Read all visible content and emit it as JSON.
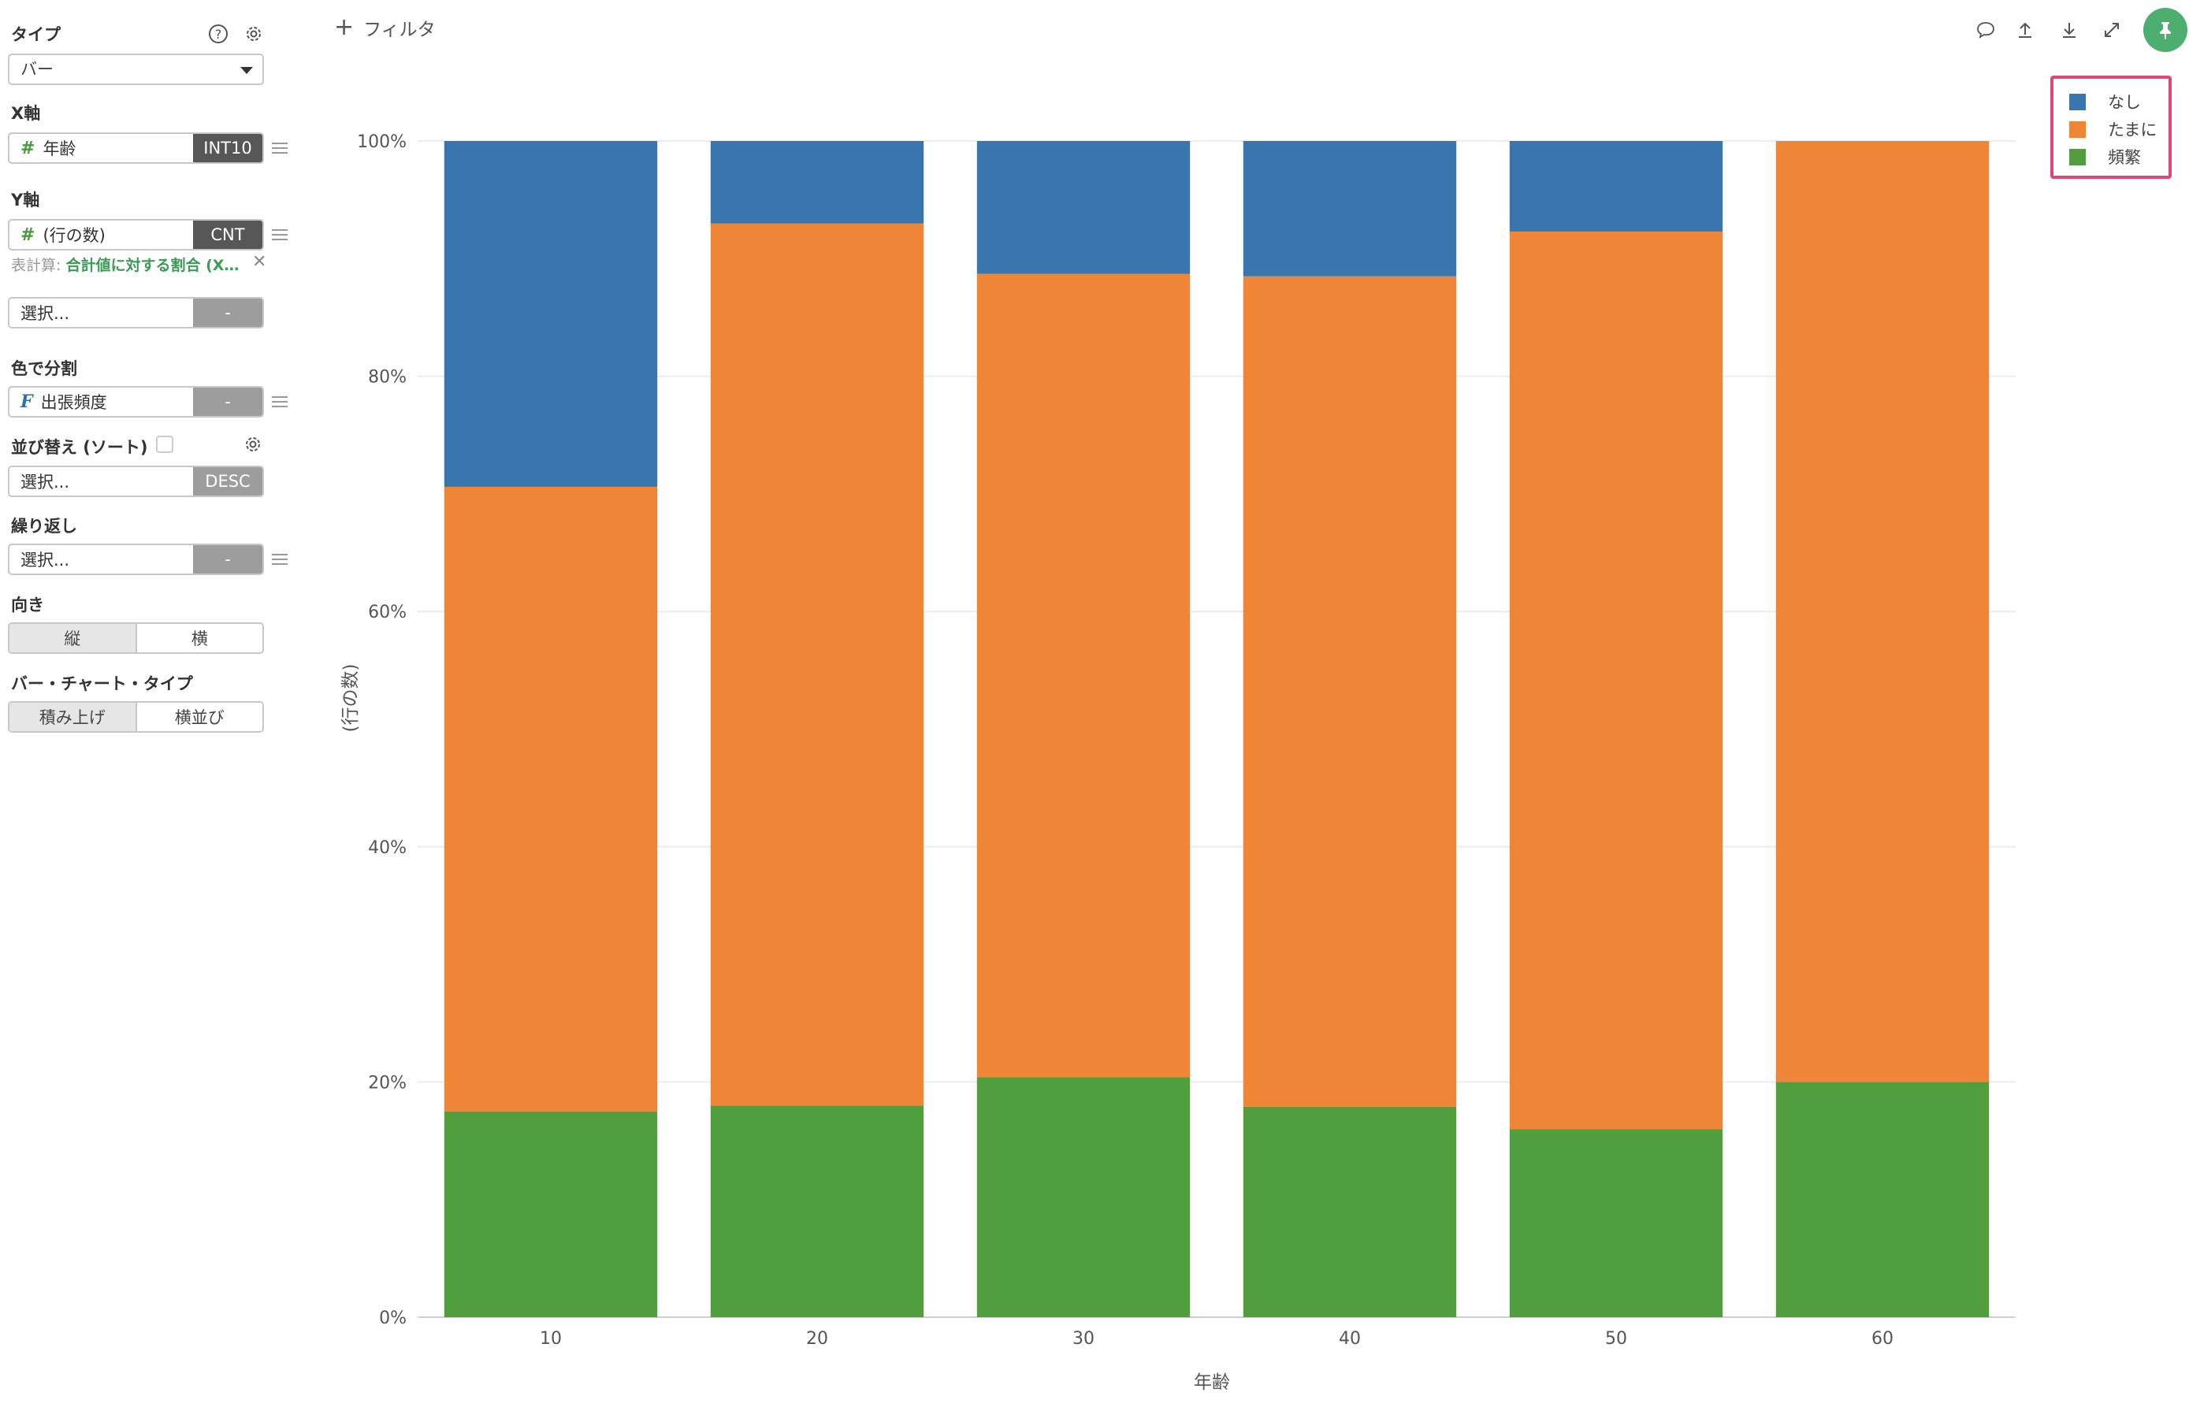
{
  "sidebar": {
    "type_label": "タイプ",
    "type_value": "バー",
    "x_axis_label": "X軸",
    "x_field": "年齢",
    "x_tag": "INT10",
    "y_axis_label": "Y軸",
    "y_field": "(行の数)",
    "y_tag": "CNT",
    "calc_prefix": "表計算:",
    "calc_value": "合計値に対する割合 (X…",
    "y2_placeholder": "選択...",
    "y2_tag": "-",
    "color_label": "色で分割",
    "color_field": "出張頻度",
    "color_tag": "-",
    "sort_label": "並び替え (ソート)",
    "sort_placeholder": "選択...",
    "sort_tag": "DESC",
    "repeat_label": "繰り返し",
    "repeat_placeholder": "選択...",
    "repeat_tag": "-",
    "orientation_label": "向き",
    "orientation_options": [
      "縦",
      "横"
    ],
    "bar_type_label": "バー・チャート・タイプ",
    "bar_type_options": [
      "積み上げ",
      "横並び"
    ]
  },
  "toolbar": {
    "filter_label": "フィルタ",
    "icons": [
      "comment-icon",
      "upload-icon",
      "download-icon",
      "expand-icon",
      "pin-icon"
    ]
  },
  "legend": {
    "items": [
      {
        "label": "なし",
        "color": "#3a76ae"
      },
      {
        "label": "たまに",
        "color": "#ef8536"
      },
      {
        "label": "頻繁",
        "color": "#519e3e"
      }
    ]
  },
  "chart_data": {
    "type": "bar",
    "stacked": true,
    "percent": true,
    "categories": [
      "10",
      "20",
      "30",
      "40",
      "50",
      "60"
    ],
    "series": [
      {
        "name": "頻繁",
        "color": "#519e3e",
        "values": [
          17.5,
          18.0,
          20.4,
          17.9,
          16.0,
          20.0
        ]
      },
      {
        "name": "たまに",
        "color": "#ef8536",
        "values": [
          53.1,
          75.0,
          68.3,
          70.6,
          76.3,
          80.0
        ]
      },
      {
        "name": "なし",
        "color": "#3a76ae",
        "values": [
          29.4,
          7.0,
          11.3,
          11.5,
          7.7,
          0.0
        ]
      }
    ],
    "xlabel": "年齢",
    "ylabel": "(行の数)",
    "ylim": [
      0,
      100
    ],
    "yticks": [
      "0%",
      "20%",
      "40%",
      "60%",
      "80%",
      "100%"
    ],
    "grid": true,
    "legend_position": "top-right"
  }
}
